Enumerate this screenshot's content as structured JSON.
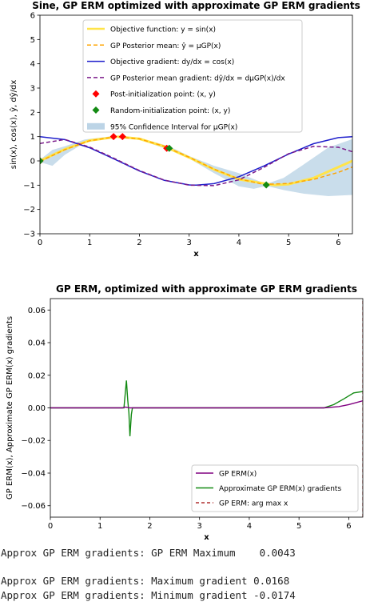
{
  "chart_data": [
    {
      "type": "line",
      "title": "Sine, GP ERM optimized with approximate GP ERM gradients",
      "xlabel": "x",
      "ylabel": "sin(x), cos(x), ŷ, dŷ/dx",
      "xlim": [
        0,
        6.283
      ],
      "ylim": [
        -3,
        6
      ],
      "xticks": [
        "0",
        "1",
        "2",
        "3",
        "4",
        "5",
        "6"
      ],
      "yticks": [
        "−3",
        "−2",
        "−1",
        "0",
        "1",
        "2",
        "3",
        "4",
        "5",
        "6"
      ],
      "legend_position": "top-center",
      "legend": [
        "Objective function: y = sin(x)",
        "GP Posterior mean: ŷ = μGP(x)",
        "Objective gradient: dy/dx = cos(x)",
        "GP Posterior mean gradient: dŷ/dx = dμGP(x)/dx",
        "Post-initialization point: (x, y)",
        "Random-initialization point: (x, y)",
        "95% Confidence Interval for μGP(x)"
      ],
      "colors": {
        "objective": "#ffe44a",
        "gp_mean": "#ffa500",
        "gradient": "#1f1fcc",
        "gp_gradient": "#7a1a8a",
        "post_init": "#ff0000",
        "random_init": "#138a13",
        "ci": "#bcd4e6"
      },
      "series": [
        {
          "name": "Objective function: y = sin(x)",
          "x": [
            0,
            0.5,
            1.0,
            1.5708,
            2.0,
            2.5,
            3.0,
            3.5,
            4.0,
            4.7124,
            5.0,
            5.5,
            6.283
          ],
          "values": [
            0,
            0.479,
            0.841,
            1.0,
            0.909,
            0.598,
            0.141,
            -0.351,
            -0.757,
            -1.0,
            -0.959,
            -0.706,
            0
          ]
        },
        {
          "name": "GP Posterior mean: ŷ = μGP(x)",
          "x": [
            0,
            0.5,
            1.0,
            1.5,
            2.0,
            2.5,
            3.0,
            3.5,
            4.0,
            4.5,
            5.0,
            5.5,
            6.0,
            6.283
          ],
          "values": [
            -0.02,
            0.46,
            0.83,
            0.99,
            0.91,
            0.6,
            0.15,
            -0.34,
            -0.74,
            -0.97,
            -0.93,
            -0.76,
            -0.47,
            -0.25
          ]
        },
        {
          "name": "Objective gradient: dy/dx = cos(x)",
          "x": [
            0,
            0.5,
            1.0,
            1.5,
            2.0,
            2.5,
            3.0,
            3.1416,
            3.5,
            4.0,
            4.5,
            5.0,
            5.5,
            6.0,
            6.283
          ],
          "values": [
            1.0,
            0.878,
            0.54,
            0.071,
            -0.416,
            -0.801,
            -0.99,
            -1.0,
            -0.936,
            -0.654,
            -0.211,
            0.284,
            0.709,
            0.96,
            1.0
          ]
        },
        {
          "name": "GP Posterior mean gradient: dŷ/dx = dμGP(x)/dx",
          "x": [
            0,
            0.5,
            1.0,
            1.5,
            2.0,
            2.5,
            3.0,
            3.5,
            4.0,
            4.5,
            5.0,
            5.5,
            6.0,
            6.283
          ],
          "values": [
            0.72,
            0.88,
            0.57,
            0.1,
            -0.4,
            -0.79,
            -1.0,
            -1.02,
            -0.78,
            -0.27,
            0.3,
            0.6,
            0.56,
            0.38
          ]
        },
        {
          "name": "Post-initialization point: (x, y)",
          "x": [
            0.0,
            1.48,
            1.66,
            2.55
          ],
          "values": [
            0.0,
            1.0,
            1.0,
            0.52
          ]
        },
        {
          "name": "Random-initialization point: (x, y)",
          "x": [
            0.0,
            2.6,
            4.55
          ],
          "values": [
            0.0,
            0.52,
            -0.99
          ]
        },
        {
          "name": "95% Confidence Interval for μGP(x)",
          "x": [
            0,
            0.25,
            0.5,
            0.9,
            1.5,
            2.0,
            2.6,
            3.0,
            3.5,
            4.0,
            4.3,
            4.55,
            4.9,
            5.3,
            5.8,
            6.283
          ],
          "upper": [
            0.05,
            0.45,
            0.6,
            0.88,
            1.03,
            0.95,
            0.6,
            0.2,
            -0.2,
            -0.5,
            -0.75,
            -0.95,
            -0.7,
            -0.15,
            0.55,
            0.9
          ],
          "lower": [
            -0.05,
            -0.2,
            0.25,
            0.75,
            0.97,
            0.87,
            0.45,
            0.1,
            -0.5,
            -1.05,
            -1.15,
            -1.03,
            -1.2,
            -1.35,
            -1.45,
            -1.4
          ]
        }
      ]
    },
    {
      "type": "line",
      "title": "GP ERM, optimized with approximate GP ERM gradients",
      "xlabel": "x",
      "ylabel": "GP ERM(x), Approximate GP ERM(x) gradients",
      "xlim": [
        0,
        6.283
      ],
      "ylim": [
        -0.067,
        0.067
      ],
      "xticks": [
        "0",
        "1",
        "2",
        "3",
        "4",
        "5",
        "6"
      ],
      "yticks": [
        "−0.06",
        "−0.04",
        "−0.02",
        "0.00",
        "0.02",
        "0.04",
        "0.06"
      ],
      "legend_position": "lower-right",
      "legend": [
        "GP ERM(x)",
        "Approximate GP ERM(x) gradients",
        "GP ERM: arg max x"
      ],
      "colors": {
        "erm": "#800080",
        "grad": "#138a13",
        "argmax": "#b03030"
      },
      "series": [
        {
          "name": "GP ERM(x)",
          "x": [
            0,
            1.45,
            1.5,
            1.55,
            1.6,
            1.7,
            5.5,
            5.8,
            6.0,
            6.283
          ],
          "values": [
            0,
            0,
            0.0005,
            0.0003,
            0.0,
            0,
            0,
            0.0008,
            0.002,
            0.0043
          ]
        },
        {
          "name": "Approximate GP ERM(x) gradients",
          "x": [
            0,
            1.48,
            1.53,
            1.555,
            1.58,
            1.6,
            1.63,
            1.65,
            1.7,
            5.5,
            5.7,
            5.9,
            6.1,
            6.283
          ],
          "values": [
            0,
            0,
            0.0168,
            0.005,
            -0.003,
            -0.0174,
            -0.004,
            0,
            0,
            0,
            0.002,
            0.0055,
            0.0092,
            0.01
          ]
        },
        {
          "name": "GP ERM: arg max x",
          "x": [
            6.283,
            6.283
          ],
          "values": [
            -0.067,
            0.067
          ]
        }
      ]
    }
  ],
  "console": [
    "Approx GP ERM gradients: GP ERM Maximum    0.0043",
    "",
    "Approx GP ERM gradients: Maximum gradient 0.0168",
    "Approx GP ERM gradients: Minimum gradient -0.0174"
  ]
}
